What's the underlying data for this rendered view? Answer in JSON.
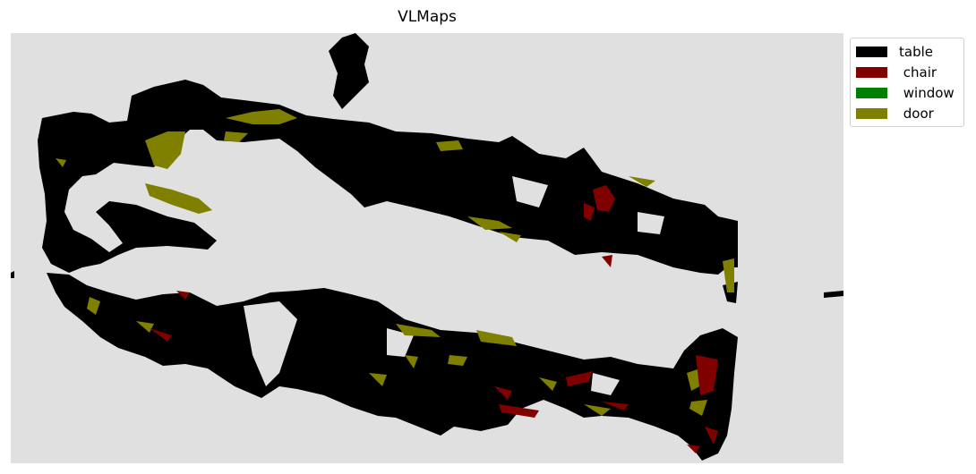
{
  "title": "VLMaps",
  "background_color": "#e0e0e0",
  "legend": {
    "placement": "outside-top-right",
    "items": [
      {
        "label": "table",
        "color": "#000000"
      },
      {
        "label": " chair",
        "color": "#800000"
      },
      {
        "label": " window",
        "color": "#008000"
      },
      {
        "label": " door",
        "color": "#808000"
      }
    ]
  }
}
